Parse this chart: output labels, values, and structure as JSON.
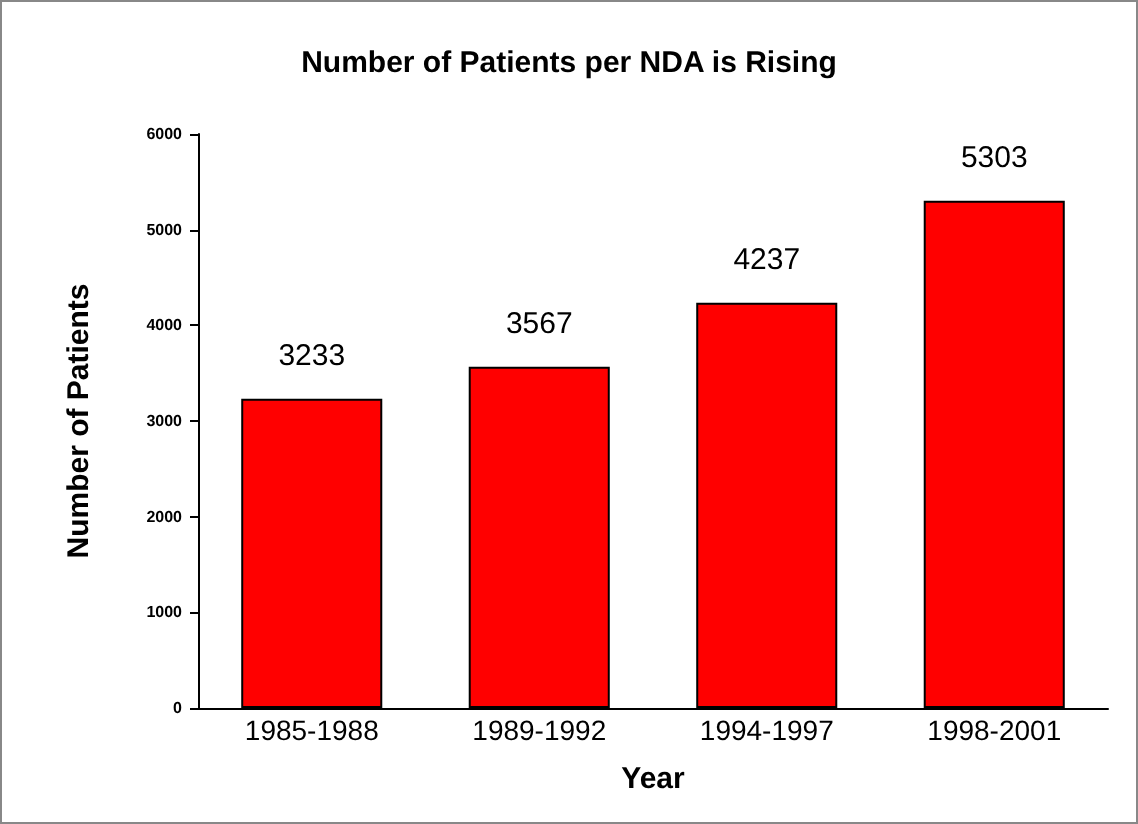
{
  "chart_data": {
    "type": "bar",
    "title": "Number of Patients per NDA is Rising",
    "xlabel": "Year",
    "ylabel": "Number of Patients",
    "categories": [
      "1985-1988",
      "1989-1992",
      "1994-1997",
      "1998-2001"
    ],
    "values": [
      3233,
      3567,
      4237,
      5303
    ],
    "color": "#ff0000",
    "ylim": [
      0,
      6000
    ],
    "yticks": [
      0,
      1000,
      2000,
      3000,
      4000,
      5000,
      6000
    ],
    "grid": false,
    "data_labels": true
  }
}
